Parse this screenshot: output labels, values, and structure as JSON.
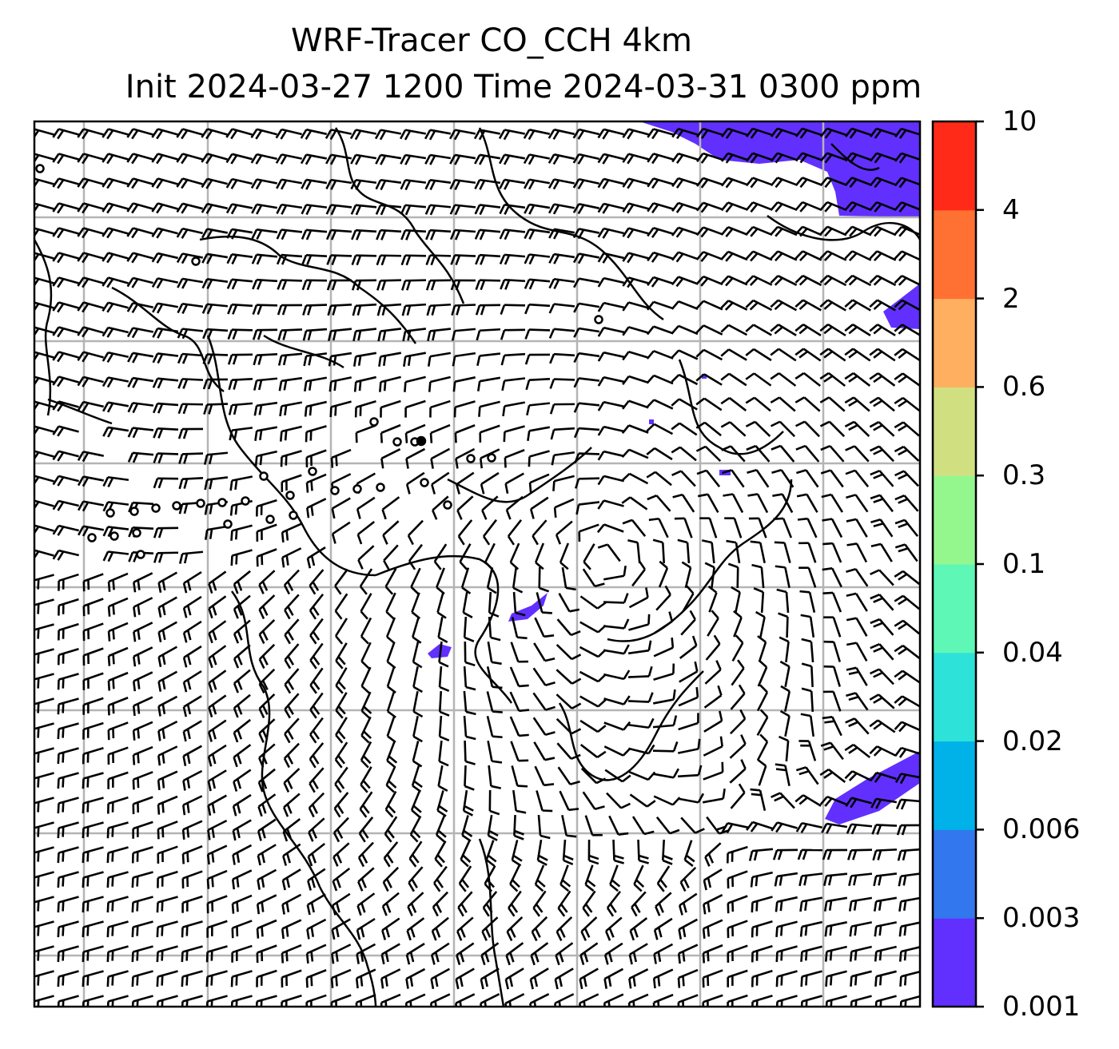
{
  "title_line1": "WRF-Tracer CO_CCH 4km",
  "title_line2": "Init 2024-03-27 1200 Time 2024-03-31 0300 ppm",
  "colorbar": {
    "ticks": [
      "0.001",
      "0.003",
      "0.006",
      "0.02",
      "0.04",
      "0.1",
      "0.3",
      "0.6",
      "2",
      "4",
      "10"
    ],
    "colors": [
      "#6130ff",
      "#3377ee",
      "#00b2e8",
      "#2de2d8",
      "#5ff7b6",
      "#93f78e",
      "#d0e080",
      "#ffaf5f",
      "#ff7033",
      "#ff2a17"
    ]
  },
  "map": {
    "background": "#ffffff",
    "plume_color": "#6130ff",
    "barb_color": "#000000",
    "grid_color": "#b0b0b0",
    "plumes": [
      "northeast-corner",
      "east-edge",
      "southeast-band",
      "central-small-patches"
    ],
    "calm_markers": true
  }
}
